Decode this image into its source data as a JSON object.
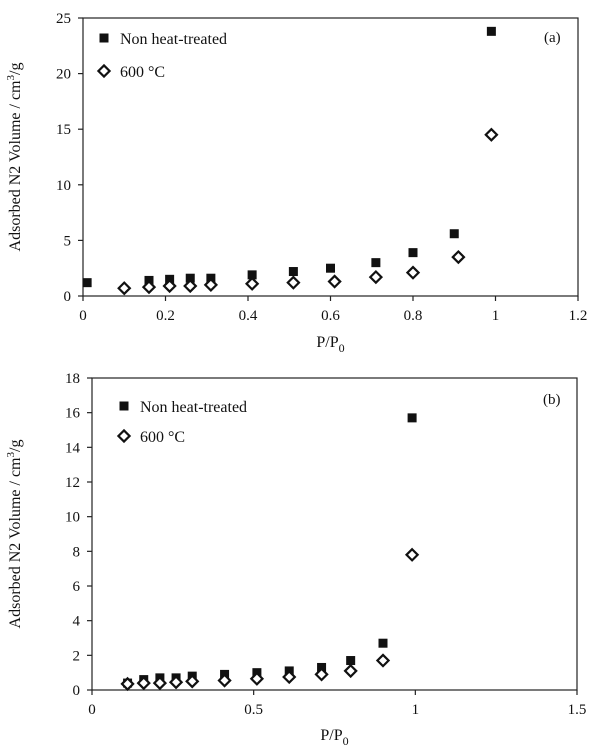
{
  "chart_data": [
    {
      "type": "scatter",
      "panel_label": "(a)",
      "xlabel_main": "P/P",
      "xlabel_sub": "0",
      "ylabel_main": "Adsorbed N2 Volume / cm",
      "ylabel_sup": "3",
      "ylabel_tail": "/g",
      "xlim": [
        0,
        1.2
      ],
      "ylim": [
        0,
        25
      ],
      "xticks": [
        "0",
        "0.2",
        "0.4",
        "0.6",
        "0.8",
        "1",
        "1.2"
      ],
      "yticks": [
        "0",
        "5",
        "10",
        "15",
        "20",
        "25"
      ],
      "legend_position": "top-left",
      "series": [
        {
          "name": "Non heat-treated",
          "marker": "filled-square",
          "color": "#111111",
          "x": [
            0.01,
            0.16,
            0.21,
            0.26,
            0.31,
            0.41,
            0.51,
            0.6,
            0.71,
            0.8,
            0.9,
            0.99
          ],
          "y": [
            1.2,
            1.4,
            1.5,
            1.6,
            1.6,
            1.9,
            2.2,
            2.5,
            3.0,
            3.9,
            5.6,
            23.8
          ]
        },
        {
          "name": "600 °C",
          "marker": "open-diamond",
          "color": "#111111",
          "x": [
            0.1,
            0.16,
            0.21,
            0.26,
            0.31,
            0.41,
            0.51,
            0.61,
            0.71,
            0.8,
            0.91,
            0.99
          ],
          "y": [
            0.7,
            0.8,
            0.9,
            0.9,
            1.0,
            1.1,
            1.2,
            1.3,
            1.7,
            2.1,
            3.5,
            14.5
          ]
        }
      ]
    },
    {
      "type": "scatter",
      "panel_label": "(b)",
      "xlabel_main": "P/P",
      "xlabel_sub": "0",
      "ylabel_main": "Adsorbed N2 Volume / cm",
      "ylabel_sup": "3",
      "ylabel_tail": "/g",
      "xlim": [
        0,
        1.5
      ],
      "ylim": [
        0,
        18
      ],
      "xticks": [
        "0",
        "0.5",
        "1",
        "1.5"
      ],
      "yticks": [
        "0",
        "2",
        "4",
        "6",
        "8",
        "10",
        "12",
        "14",
        "16",
        "18"
      ],
      "legend_position": "top-left",
      "series": [
        {
          "name": "Non heat-treated",
          "marker": "filled-square",
          "color": "#111111",
          "x": [
            0.11,
            0.16,
            0.21,
            0.26,
            0.31,
            0.41,
            0.51,
            0.61,
            0.71,
            0.8,
            0.9,
            0.99
          ],
          "y": [
            0.4,
            0.6,
            0.7,
            0.7,
            0.8,
            0.9,
            1.0,
            1.1,
            1.3,
            1.7,
            2.7,
            15.7
          ]
        },
        {
          "name": "600 °C",
          "marker": "open-diamond",
          "color": "#111111",
          "x": [
            0.11,
            0.16,
            0.21,
            0.26,
            0.31,
            0.41,
            0.51,
            0.61,
            0.71,
            0.8,
            0.9,
            0.99
          ],
          "y": [
            0.35,
            0.4,
            0.4,
            0.45,
            0.5,
            0.55,
            0.65,
            0.75,
            0.9,
            1.1,
            1.7,
            7.8
          ]
        }
      ]
    }
  ]
}
